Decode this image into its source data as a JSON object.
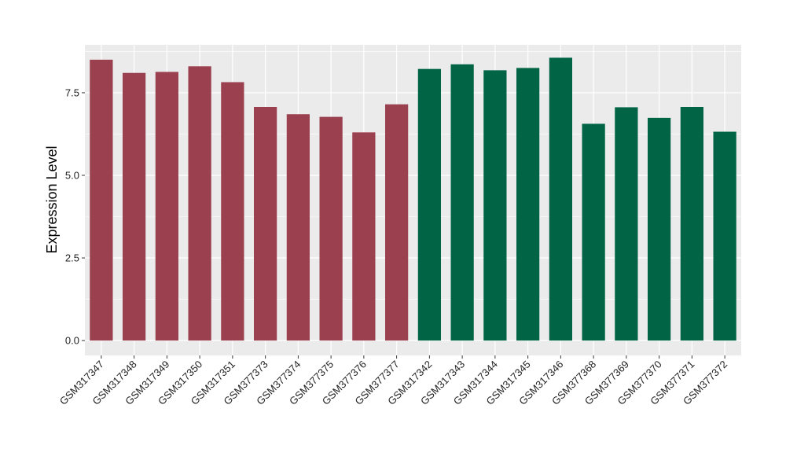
{
  "chart_data": {
    "type": "bar",
    "title": "",
    "xlabel": "",
    "ylabel": "Expression Level",
    "ylim": [
      -0.45,
      8.95
    ],
    "yticks": [
      0.0,
      2.5,
      5.0,
      7.5
    ],
    "ytick_labels": [
      "0.0",
      "2.5",
      "5.0",
      "7.5"
    ],
    "grid": true,
    "legend": "none",
    "colors": {
      "group_1": "#9A404F",
      "group_2": "#006445",
      "panel_bg": "#EBEBEB",
      "grid": "#FFFFFF"
    },
    "categories": [
      "GSM317347",
      "GSM317348",
      "GSM317349",
      "GSM317350",
      "GSM317351",
      "GSM377373",
      "GSM377374",
      "GSM377375",
      "GSM377376",
      "GSM377377",
      "GSM317342",
      "GSM317343",
      "GSM317344",
      "GSM317345",
      "GSM317346",
      "GSM377368",
      "GSM377369",
      "GSM377370",
      "GSM377371",
      "GSM377372"
    ],
    "values": [
      8.5,
      8.1,
      8.13,
      8.3,
      7.82,
      7.07,
      6.85,
      6.77,
      6.3,
      7.15,
      8.22,
      8.36,
      8.18,
      8.25,
      8.56,
      6.56,
      7.06,
      6.74,
      7.07,
      6.32
    ],
    "bar_group": [
      1,
      1,
      1,
      1,
      1,
      1,
      1,
      1,
      1,
      1,
      2,
      2,
      2,
      2,
      2,
      2,
      2,
      2,
      2,
      2
    ]
  }
}
